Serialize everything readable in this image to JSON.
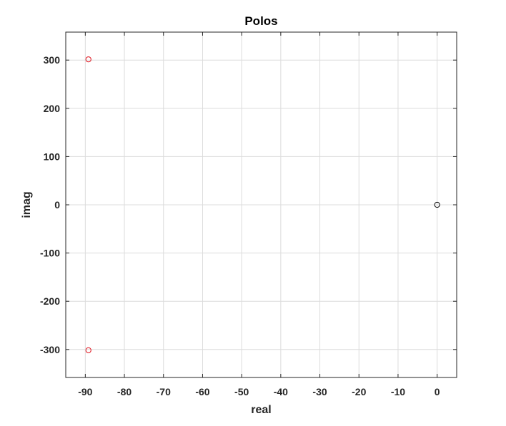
{
  "chart_data": {
    "type": "scatter",
    "title": "Polos",
    "xlabel": "real",
    "ylabel": "imag",
    "xlim": [
      -95,
      5
    ],
    "ylim": [
      -358,
      358
    ],
    "xticks": [
      -90,
      -80,
      -70,
      -60,
      -50,
      -40,
      -30,
      -20,
      -10,
      0
    ],
    "yticks": [
      -300,
      -200,
      -100,
      0,
      100,
      200,
      300
    ],
    "grid": true,
    "marker": "open-circle",
    "series": [
      {
        "color": "#e0141e",
        "points": [
          {
            "x": -89.2,
            "y": 301.5
          },
          {
            "x": -89.2,
            "y": -301.5
          }
        ]
      },
      {
        "color": "#000000",
        "points": [
          {
            "x": 0,
            "y": 0
          }
        ]
      }
    ]
  },
  "colors": {
    "grid": "#dcdcdc",
    "axis": "#262626",
    "background": "#ffffff"
  }
}
